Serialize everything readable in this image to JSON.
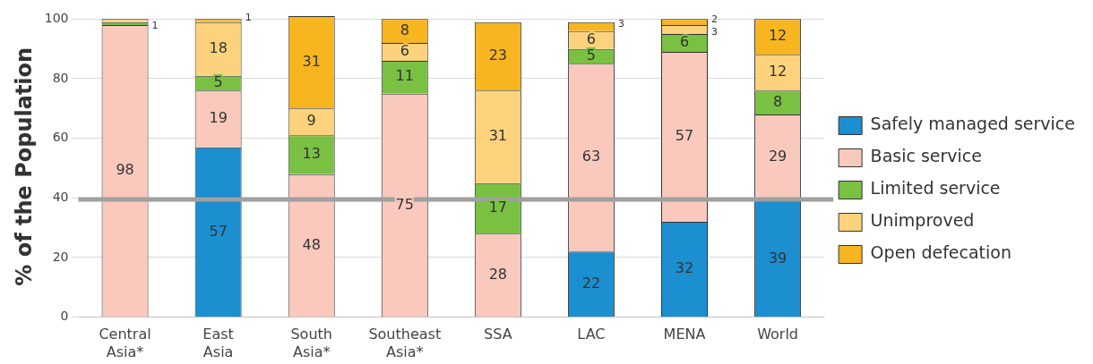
{
  "chart_data": {
    "type": "bar",
    "stacked": true,
    "ylabel": "% of the Population",
    "categories": [
      "Central Asia*",
      "East Asia",
      "South Asia*",
      "Southeast Asia*",
      "SSA",
      "LAC",
      "MENA",
      "World"
    ],
    "series": [
      {
        "name": "Safely managed service",
        "color": "#1b8fcf",
        "values": [
          null,
          57,
          null,
          null,
          null,
          22,
          32,
          39
        ],
        "value_labels": [
          null,
          "57",
          null,
          null,
          null,
          "22",
          "32",
          "39"
        ]
      },
      {
        "name": "Basic service",
        "color": "#f9c9bd",
        "values": [
          98,
          19,
          48,
          75,
          28,
          63,
          57,
          29
        ],
        "value_labels": [
          "98",
          "19",
          "48",
          "75",
          "28",
          "63",
          "57",
          "29"
        ]
      },
      {
        "name": "Limited service",
        "color": "#7ac143",
        "values": [
          1,
          5,
          13,
          11,
          17,
          5,
          6,
          8
        ],
        "value_labels": [
          "1",
          "5",
          "13",
          "11",
          "17",
          "5",
          "6",
          "8"
        ]
      },
      {
        "name": "Unimproved",
        "color": "#fcd27c",
        "values": [
          1,
          18,
          9,
          6,
          31,
          6,
          3,
          12
        ],
        "value_labels": [
          null,
          "18",
          "9",
          "6",
          "31",
          "6",
          "3",
          "12"
        ]
      },
      {
        "name": "Open defecation",
        "color": "#f7b520",
        "values": [
          null,
          1,
          31,
          8,
          23,
          3,
          2,
          12
        ],
        "value_labels": [
          null,
          "1",
          "31",
          "8",
          "23",
          "3",
          "2",
          "12"
        ]
      }
    ],
    "ylim": [
      0,
      101
    ],
    "yticks": [
      0,
      20,
      40,
      60,
      80,
      100
    ],
    "grid": "y",
    "legend": "right",
    "ref_lines": [
      {
        "axis": "y",
        "value": 39.5,
        "color": "#a0a0a0"
      }
    ]
  }
}
